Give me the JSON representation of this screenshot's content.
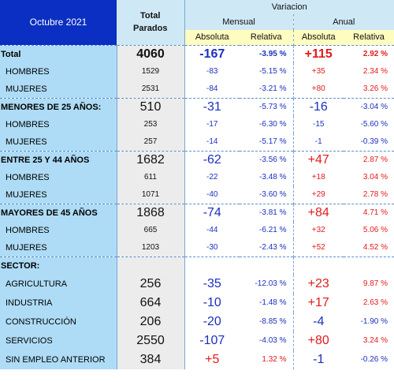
{
  "header": {
    "month": "Octubre 2021",
    "total_label": "Total\nParados",
    "variacion": "Variacion",
    "mensual": "Mensual",
    "anual": "Anual",
    "absoluta": "Absoluta",
    "relativa": "Relativa"
  },
  "rows": [
    {
      "label": "Total",
      "type": "section",
      "total": "4060",
      "m_abs": "-167",
      "m_rel": "-3.95 %",
      "a_abs": "+115",
      "a_rel": "2.92 %",
      "m_sign": "neg",
      "a_sign": "pos",
      "bold_nums": true
    },
    {
      "label": "HOMBRES",
      "type": "sub",
      "total": "1529",
      "m_abs": "-83",
      "m_rel": "-5.15 %",
      "a_abs": "+35",
      "a_rel": "2.34 %",
      "m_sign": "neg",
      "a_sign": "pos"
    },
    {
      "label": "MUJERES",
      "type": "sub",
      "total": "2531",
      "m_abs": "-84",
      "m_rel": "-3.21 %",
      "a_abs": "+80",
      "a_rel": "3.26 %",
      "m_sign": "neg",
      "a_sign": "pos"
    },
    {
      "label": "MENORES DE 25 AÑOS:",
      "type": "section",
      "total": "510",
      "m_abs": "-31",
      "m_rel": "-5.73 %",
      "a_abs": "-16",
      "a_rel": "-3.04 %",
      "m_sign": "neg",
      "a_sign": "neg"
    },
    {
      "label": "HOMBRES",
      "type": "sub",
      "total": "253",
      "m_abs": "-17",
      "m_rel": "-6.30 %",
      "a_abs": "-15",
      "a_rel": "-5.60 %",
      "m_sign": "neg",
      "a_sign": "neg"
    },
    {
      "label": "MUJERES",
      "type": "sub",
      "total": "257",
      "m_abs": "-14",
      "m_rel": "-5.17 %",
      "a_abs": "-1",
      "a_rel": "-0.39 %",
      "m_sign": "neg",
      "a_sign": "neg"
    },
    {
      "label": "ENTRE 25 Y 44 AÑOS",
      "type": "section",
      "total": "1682",
      "m_abs": "-62",
      "m_rel": "-3.56 %",
      "a_abs": "+47",
      "a_rel": "2.87 %",
      "m_sign": "neg",
      "a_sign": "pos"
    },
    {
      "label": "HOMBRES",
      "type": "sub",
      "total": "611",
      "m_abs": "-22",
      "m_rel": "-3.48 %",
      "a_abs": "+18",
      "a_rel": "3.04 %",
      "m_sign": "neg",
      "a_sign": "pos"
    },
    {
      "label": "MUJERES",
      "type": "sub",
      "total": "1071",
      "m_abs": "-40",
      "m_rel": "-3.60 %",
      "a_abs": "+29",
      "a_rel": "2.78 %",
      "m_sign": "neg",
      "a_sign": "pos"
    },
    {
      "label": "MAYORES DE 45 AÑOS",
      "type": "section",
      "total": "1868",
      "m_abs": "-74",
      "m_rel": "-3.81 %",
      "a_abs": "+84",
      "a_rel": "4.71 %",
      "m_sign": "neg",
      "a_sign": "pos"
    },
    {
      "label": "HOMBRES",
      "type": "sub",
      "total": "665",
      "m_abs": "-44",
      "m_rel": "-6.21 %",
      "a_abs": "+32",
      "a_rel": "5.06 %",
      "m_sign": "neg",
      "a_sign": "pos"
    },
    {
      "label": "MUJERES",
      "type": "sub",
      "total": "1203",
      "m_abs": "-30",
      "m_rel": "-2.43 %",
      "a_abs": "+52",
      "a_rel": "4.52 %",
      "m_sign": "neg",
      "a_sign": "pos"
    },
    {
      "label": "SECTOR:",
      "type": "sector",
      "total": "",
      "m_abs": "",
      "m_rel": "",
      "a_abs": "",
      "a_rel": "",
      "m_sign": "neg",
      "a_sign": "pos"
    },
    {
      "label": "AGRICULTURA",
      "type": "sectoritem",
      "total": "256",
      "m_abs": "-35",
      "m_rel": "-12.03 %",
      "a_abs": "+23",
      "a_rel": "9.87 %",
      "m_sign": "neg",
      "a_sign": "pos"
    },
    {
      "label": "INDUSTRIA",
      "type": "sectoritem",
      "total": "664",
      "m_abs": "-10",
      "m_rel": "-1.48 %",
      "a_abs": "+17",
      "a_rel": "2.63 %",
      "m_sign": "neg",
      "a_sign": "pos"
    },
    {
      "label": "CONSTRUCCIÓN",
      "type": "sectoritem",
      "total": "206",
      "m_abs": "-20",
      "m_rel": "-8.85 %",
      "a_abs": "-4",
      "a_rel": "-1.90 %",
      "m_sign": "neg",
      "a_sign": "neg"
    },
    {
      "label": "SERVICIOS",
      "type": "sectoritem",
      "total": "2550",
      "m_abs": "-107",
      "m_rel": "-4.03 %",
      "a_abs": "+80",
      "a_rel": "3.24 %",
      "m_sign": "neg",
      "a_sign": "pos"
    },
    {
      "label": "SIN EMPLEO ANTERIOR",
      "type": "sectoritem",
      "total": "384",
      "m_abs": "+5",
      "m_rel": "1.32 %",
      "a_abs": "-1",
      "a_rel": "-0.26 %",
      "m_sign": "pos",
      "a_sign": "neg"
    }
  ]
}
